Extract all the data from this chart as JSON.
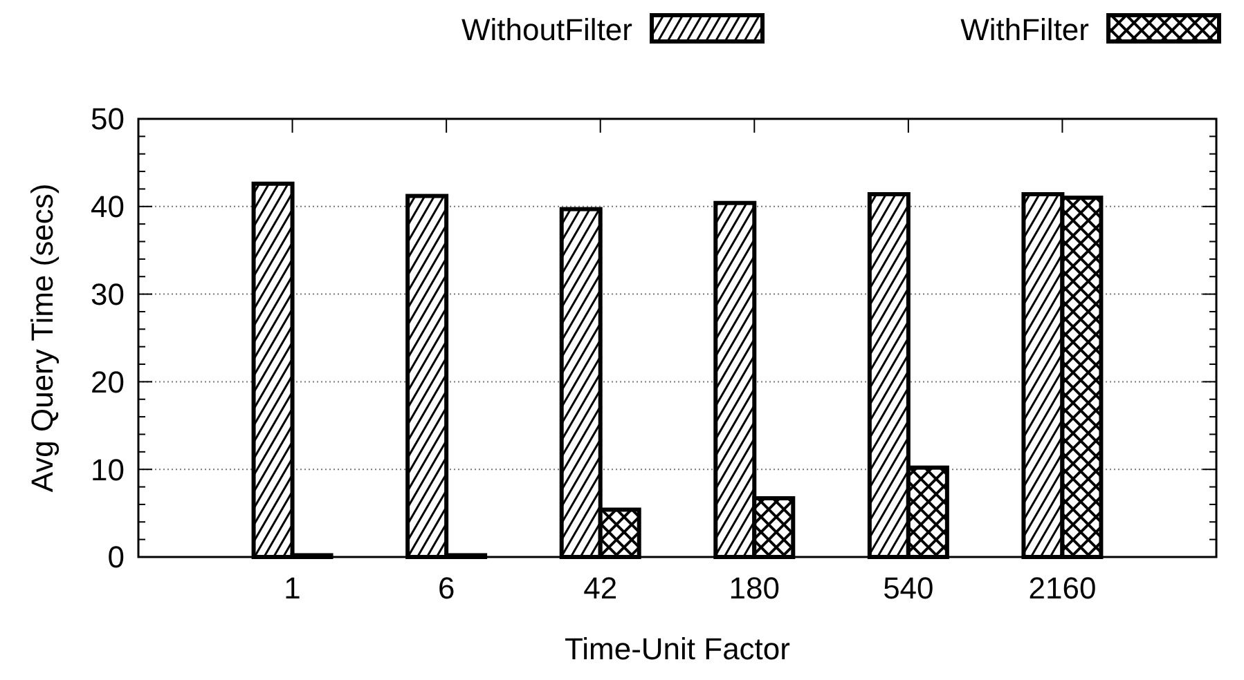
{
  "chart_data": {
    "type": "bar",
    "xlabel": "Time-Unit Factor",
    "ylabel": "Avg Query Time (secs)",
    "categories": [
      "1",
      "6",
      "42",
      "180",
      "540",
      "2160"
    ],
    "series": [
      {
        "name": "WithoutFilter",
        "color": "#000000",
        "values": [
          42.6,
          41.2,
          39.7,
          40.4,
          41.4,
          41.4
        ]
      },
      {
        "name": "WithFilter",
        "color": "#000000",
        "values": [
          0.2,
          0.2,
          5.4,
          6.7,
          10.2,
          41.0
        ]
      }
    ],
    "ylim": [
      0,
      50
    ],
    "yticks": [
      0,
      10,
      20,
      30,
      40,
      50
    ],
    "grid": "y",
    "legend": "top right"
  }
}
